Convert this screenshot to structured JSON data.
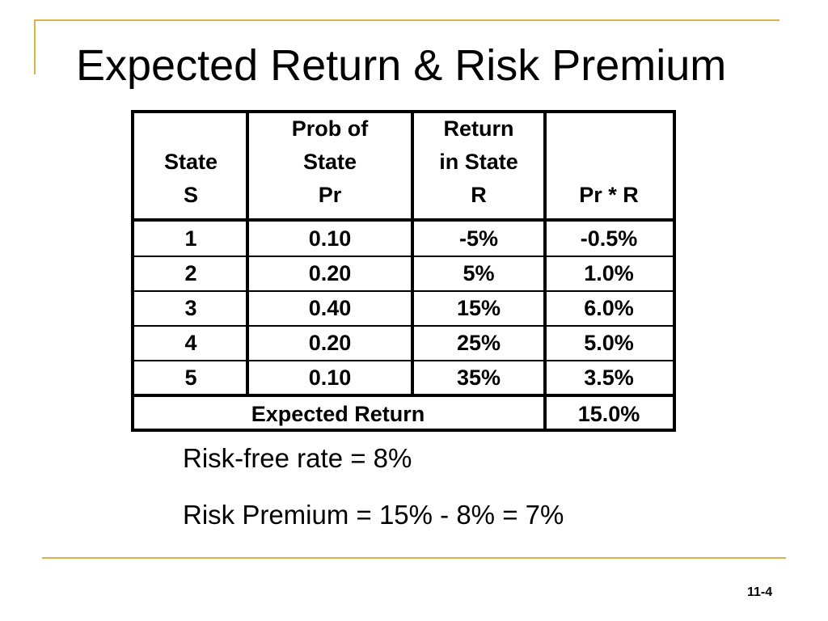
{
  "slide": {
    "title": "Expected Return & Risk Premium",
    "page_number": "11-4",
    "accent_color": "#d9b34a"
  },
  "table": {
    "headers": [
      [
        "State",
        "S"
      ],
      [
        "Prob of",
        "State",
        "Pr"
      ],
      [
        "Return",
        "in State",
        "R"
      ],
      [
        "Pr * R"
      ]
    ],
    "rows": [
      [
        "1",
        "0.10",
        "-5%",
        "-0.5%"
      ],
      [
        "2",
        "0.20",
        "5%",
        "1.0%"
      ],
      [
        "3",
        "0.40",
        "15%",
        "6.0%"
      ],
      [
        "4",
        "0.20",
        "25%",
        "5.0%"
      ],
      [
        "5",
        "0.10",
        "35%",
        "3.5%"
      ]
    ],
    "footer": {
      "label": "Expected Return",
      "value": "15.0%"
    }
  },
  "notes": {
    "risk_free": "Risk-free rate = 8%",
    "risk_premium": "Risk Premium = 15% - 8% = 7%"
  }
}
